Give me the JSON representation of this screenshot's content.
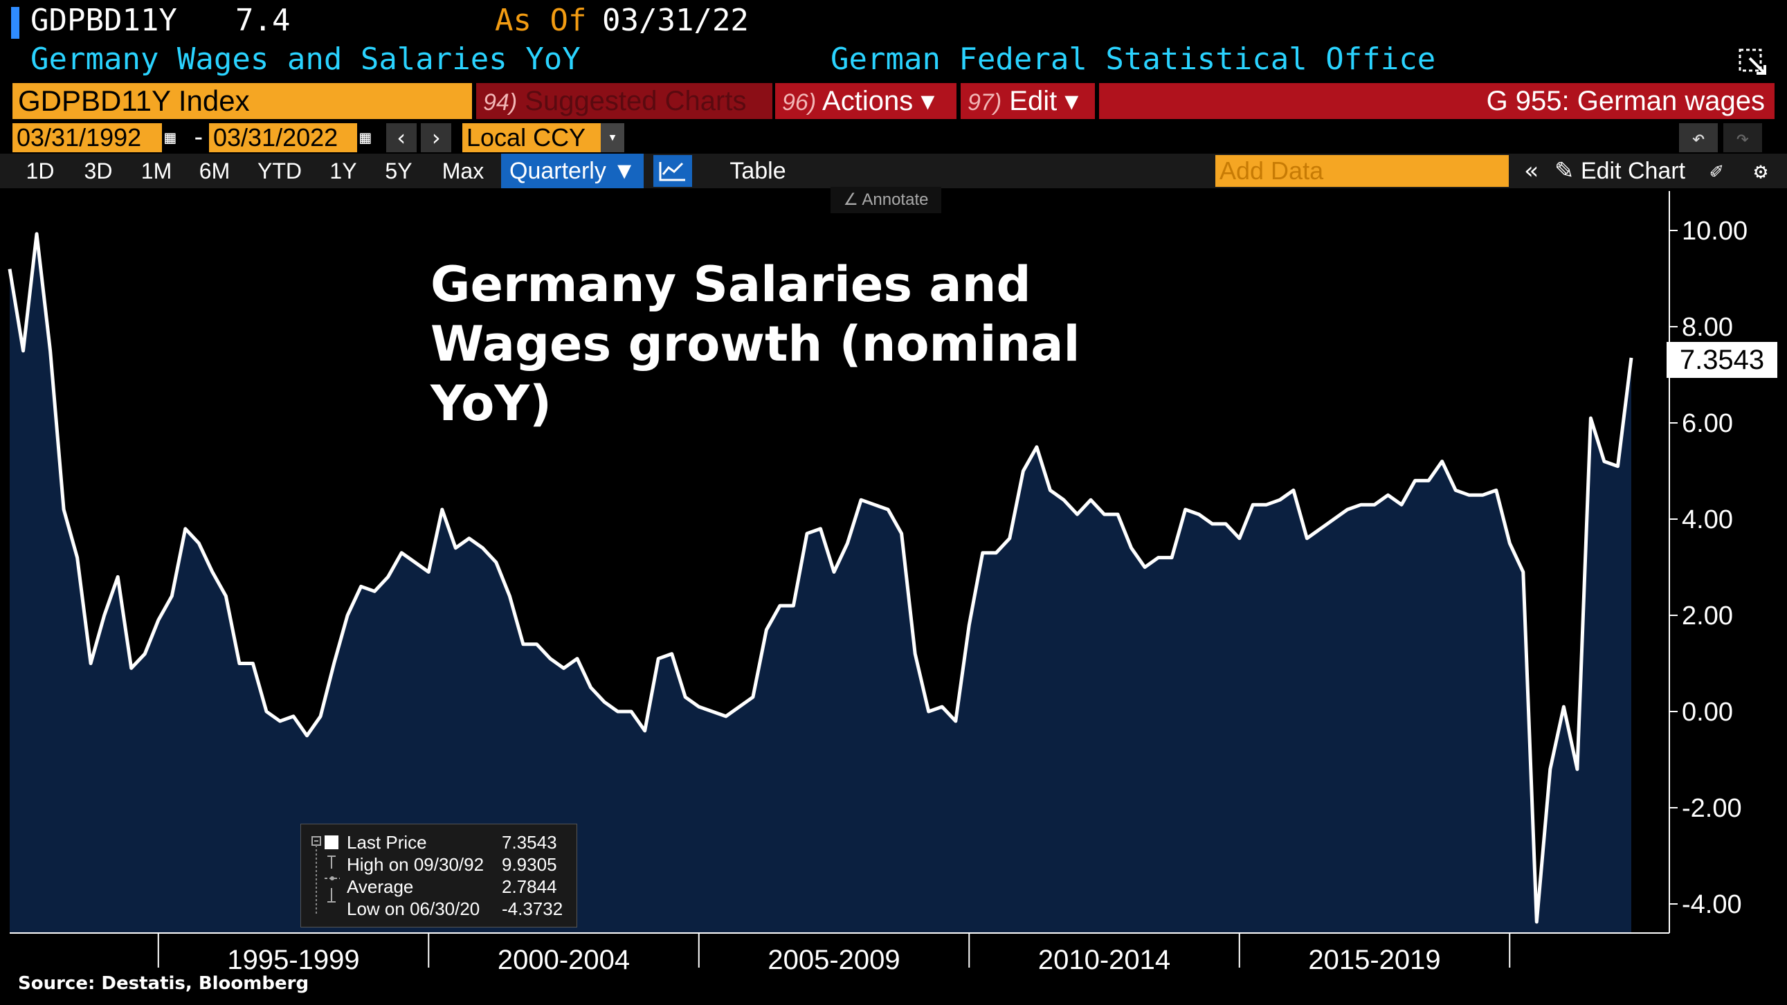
{
  "header": {
    "ticker": "GDPBD11Y",
    "price": "7.4",
    "asof_label": "As Of",
    "asof_date": "03/31/22",
    "description": "Germany Wages and Salaries YoY",
    "source_office": "German Federal Statistical Office"
  },
  "toolbar": {
    "index_name": "GDPBD11Y Index",
    "suggested_key": "94)",
    "suggested_label": "Suggested Charts",
    "actions_key": "96)",
    "actions_label": "Actions ▾",
    "edit_key": "97)",
    "edit_label": "Edit ▾",
    "graph_title": "G 955: German wages",
    "start_date": "03/31/1992",
    "end_date": "03/31/2022",
    "range_dash": "-",
    "currency": "Local CCY",
    "periods": [
      "1D",
      "3D",
      "1M",
      "6M",
      "YTD",
      "1Y",
      "5Y",
      "Max"
    ],
    "frequency": "Quarterly ▼",
    "table_label": "Table",
    "add_data_placeholder": "Add Data",
    "edit_chart_label": "Edit Chart",
    "annotate_label": "Annotate"
  },
  "legend": {
    "rows": [
      {
        "label": "Last Price",
        "value": "7.3543"
      },
      {
        "label": "High on 09/30/92",
        "value": "9.9305"
      },
      {
        "label": "Average",
        "value": "2.7844"
      },
      {
        "label": "Low on 06/30/20",
        "value": "-4.3732"
      }
    ]
  },
  "last_price_tag": "7.3543",
  "footer": {
    "source": "Source:  Destatis, Bloomberg"
  },
  "colors": {
    "line": "#ffffff",
    "fill": "#0b2040",
    "accent": "#f5a623",
    "bar_red": "#b0121d",
    "blue": "#1565c0"
  },
  "chart_data": {
    "type": "area",
    "title": "Germany Salaries and Wages growth (nominal YoY)",
    "xlabel": "",
    "ylabel": "",
    "ylim": [
      -4.5,
      10.5
    ],
    "yticks": [
      "10.00",
      "8.00",
      "6.00",
      "4.00",
      "2.00",
      "0.00",
      "-2.00",
      "-4.00"
    ],
    "ytick_values": [
      10,
      8,
      6,
      4,
      2,
      0,
      -2,
      -4
    ],
    "x_range": [
      1992.25,
      2022.25
    ],
    "x_period_labels": [
      {
        "label": "1995-1999",
        "start": 1995,
        "end": 2000
      },
      {
        "label": "2000-2004",
        "start": 2000,
        "end": 2005
      },
      {
        "label": "2005-2009",
        "start": 2005,
        "end": 2010
      },
      {
        "label": "2010-2014",
        "start": 2010,
        "end": 2015
      },
      {
        "label": "2015-2019",
        "start": 2015,
        "end": 2020
      }
    ],
    "x_boundaries": [
      1995,
      2000,
      2005,
      2010,
      2015,
      2020
    ],
    "grid": false,
    "legend": "bottom-left",
    "series": [
      {
        "name": "Last Price",
        "x": [
          1992.25,
          1992.5,
          1992.75,
          1993.0,
          1993.25,
          1993.5,
          1993.75,
          1994.0,
          1994.25,
          1994.5,
          1994.75,
          1995.0,
          1995.25,
          1995.5,
          1995.75,
          1996.0,
          1996.25,
          1996.5,
          1996.75,
          1997.0,
          1997.25,
          1997.5,
          1997.75,
          1998.0,
          1998.25,
          1998.5,
          1998.75,
          1999.0,
          1999.25,
          1999.5,
          1999.75,
          2000.0,
          2000.25,
          2000.5,
          2000.75,
          2001.0,
          2001.25,
          2001.5,
          2001.75,
          2002.0,
          2002.25,
          2002.5,
          2002.75,
          2003.0,
          2003.25,
          2003.5,
          2003.75,
          2004.0,
          2004.25,
          2004.5,
          2004.75,
          2005.0,
          2005.25,
          2005.5,
          2005.75,
          2006.0,
          2006.25,
          2006.5,
          2006.75,
          2007.0,
          2007.25,
          2007.5,
          2007.75,
          2008.0,
          2008.25,
          2008.5,
          2008.75,
          2009.0,
          2009.25,
          2009.5,
          2009.75,
          2010.0,
          2010.25,
          2010.5,
          2010.75,
          2011.0,
          2011.25,
          2011.5,
          2011.75,
          2012.0,
          2012.25,
          2012.5,
          2012.75,
          2013.0,
          2013.25,
          2013.5,
          2013.75,
          2014.0,
          2014.25,
          2014.5,
          2014.75,
          2015.0,
          2015.25,
          2015.5,
          2015.75,
          2016.0,
          2016.25,
          2016.5,
          2016.75,
          2017.0,
          2017.25,
          2017.5,
          2017.75,
          2018.0,
          2018.25,
          2018.5,
          2018.75,
          2019.0,
          2019.25,
          2019.5,
          2019.75,
          2020.0,
          2020.25,
          2020.5,
          2020.75,
          2021.0,
          2021.25,
          2021.5,
          2021.75,
          2022.0,
          2022.25
        ],
        "values": [
          9.2,
          7.5,
          9.93,
          7.5,
          4.2,
          3.2,
          1.0,
          2.0,
          2.8,
          0.9,
          1.2,
          1.9,
          2.4,
          3.8,
          3.5,
          2.9,
          2.4,
          1.0,
          1.0,
          0.0,
          -0.2,
          -0.1,
          -0.5,
          -0.1,
          1.0,
          2.0,
          2.6,
          2.5,
          2.8,
          3.3,
          3.1,
          2.9,
          4.2,
          3.4,
          3.6,
          3.4,
          3.1,
          2.4,
          1.4,
          1.4,
          1.1,
          0.9,
          1.1,
          0.5,
          0.2,
          0.0,
          0.0,
          -0.4,
          1.1,
          1.2,
          0.3,
          0.1,
          0.0,
          -0.1,
          0.1,
          0.3,
          1.7,
          2.2,
          2.2,
          3.7,
          3.8,
          2.9,
          3.5,
          4.4,
          4.3,
          4.2,
          3.7,
          1.2,
          0.0,
          0.1,
          -0.2,
          1.8,
          3.3,
          3.3,
          3.6,
          5.0,
          5.5,
          4.6,
          4.4,
          4.1,
          4.4,
          4.1,
          4.1,
          3.4,
          3.0,
          3.2,
          3.2,
          4.2,
          4.1,
          3.9,
          3.9,
          3.6,
          4.3,
          4.3,
          4.4,
          4.6,
          3.6,
          3.8,
          4.0,
          4.2,
          4.3,
          4.3,
          4.5,
          4.3,
          4.8,
          4.8,
          5.2,
          4.6,
          4.5,
          4.5,
          4.6,
          3.5,
          2.9,
          -4.3732,
          -1.2,
          0.1,
          -1.2,
          6.1,
          5.2,
          5.1,
          7.3543
        ]
      }
    ]
  }
}
